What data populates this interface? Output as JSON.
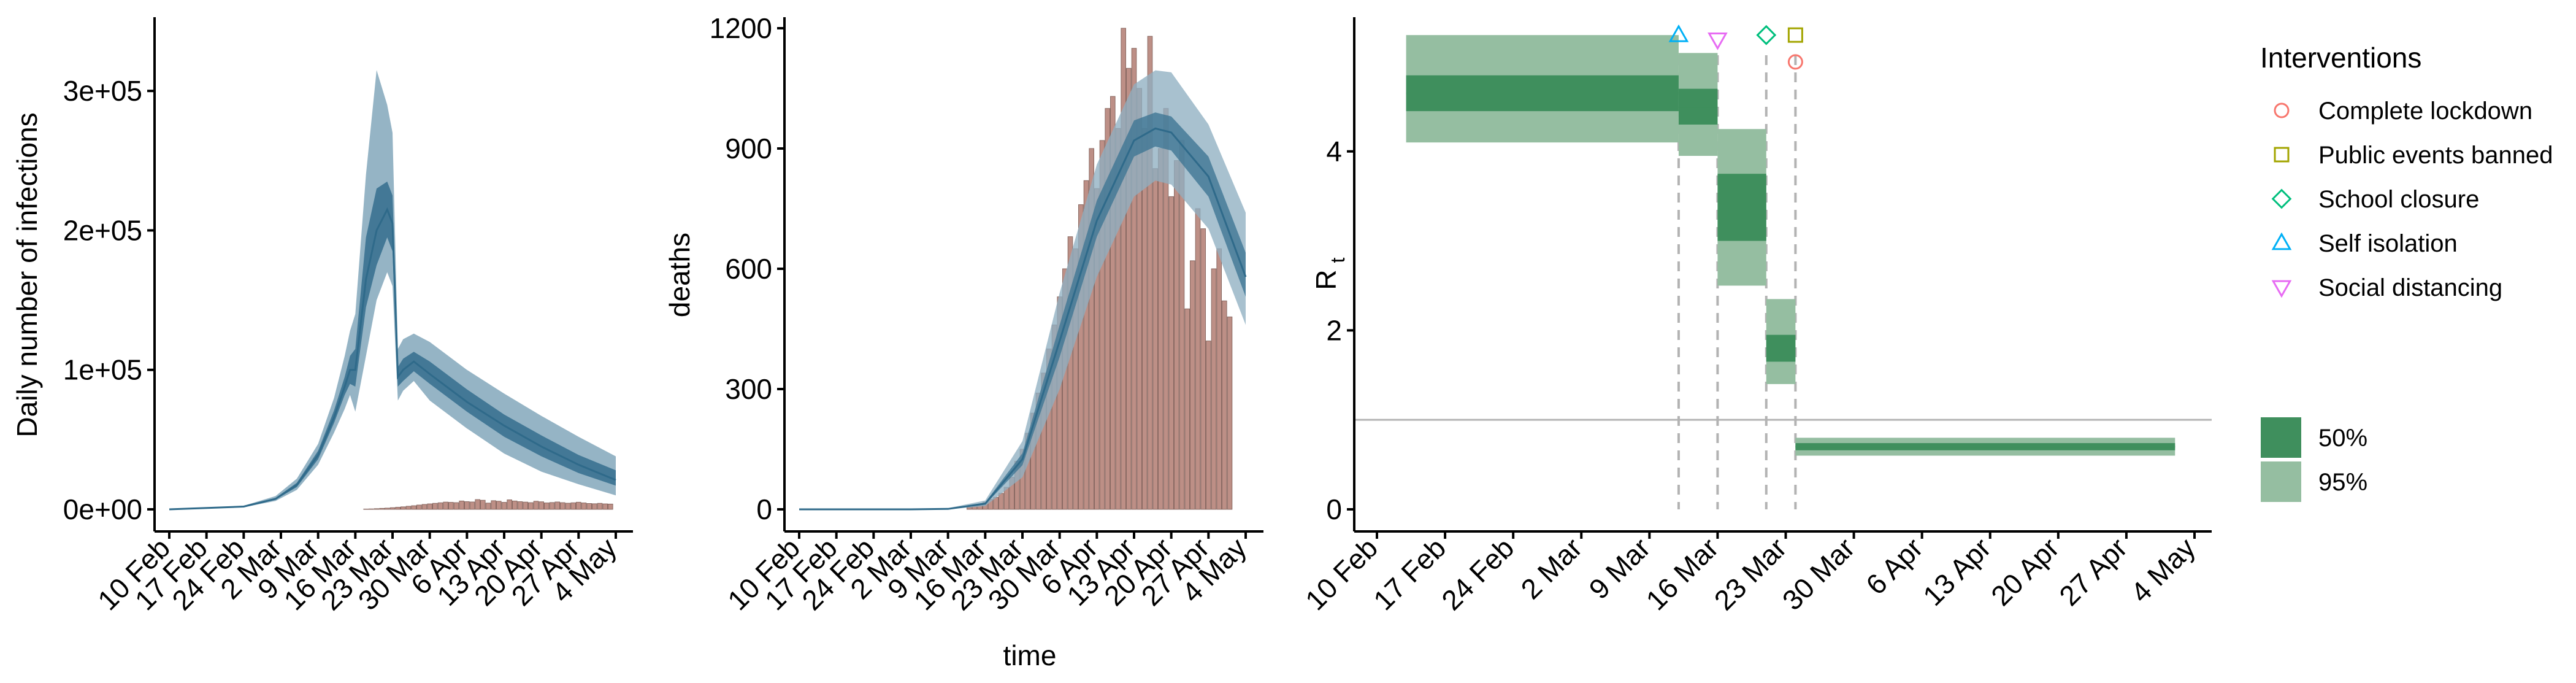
{
  "colors": {
    "bars": "#bd8f86",
    "bars_stroke": "#8a6a63",
    "band95_blue": "#8fb0c2",
    "band50_blue": "#3e7594",
    "line_blue": "#2f6a8a",
    "band95_green": "#95bea1",
    "band50_green": "#3f8f5d",
    "ref_line": "#b3b3b3",
    "dash_line": "#b3b3b3",
    "complete_lockdown": "#f8766d",
    "public_events": "#a3a500",
    "school_closure": "#00bf7d",
    "self_isolation": "#00b0f6",
    "social_distancing": "#e76bf3"
  },
  "chart_data": [
    {
      "type": "area",
      "ylabel": "Daily number of infections",
      "xlabel": "",
      "x_ticks": [
        "10 Feb",
        "17 Feb",
        "24 Feb",
        "2 Mar",
        "9 Mar",
        "16 Mar",
        "23 Mar",
        "30 Mar",
        "6 Apr",
        "13 Apr",
        "20 Apr",
        "27 Apr",
        "4 May"
      ],
      "y_ticks": [
        "0e+00",
        "1e+05",
        "2e+05",
        "3e+05"
      ],
      "ylim": [
        0,
        330000
      ],
      "x_start_date": "2020-02-10",
      "bands": {
        "x": [
          "2020-02-10",
          "2020-02-24",
          "2020-03-01",
          "2020-03-05",
          "2020-03-09",
          "2020-03-12",
          "2020-03-14",
          "2020-03-15",
          "2020-03-16",
          "2020-03-18",
          "2020-03-20",
          "2020-03-22",
          "2020-03-23",
          "2020-03-24",
          "2020-03-25",
          "2020-03-27",
          "2020-03-30",
          "2020-04-06",
          "2020-04-13",
          "2020-04-20",
          "2020-04-27",
          "2020-05-04"
        ],
        "lo95": [
          0,
          1500,
          6000,
          14000,
          32000,
          55000,
          72000,
          82000,
          70000,
          110000,
          150000,
          170000,
          160000,
          78000,
          85000,
          92000,
          78000,
          58000,
          40000,
          27000,
          18000,
          10000
        ],
        "lo50": [
          0,
          1800,
          7000,
          16000,
          36000,
          62000,
          82000,
          90000,
          88000,
          145000,
          175000,
          195000,
          185000,
          88000,
          92000,
          99000,
          90000,
          70000,
          52000,
          38000,
          26000,
          17000
        ],
        "median": [
          0,
          2000,
          7500,
          17500,
          39000,
          66000,
          88000,
          100000,
          100000,
          165000,
          200000,
          215000,
          205000,
          95000,
          100000,
          106000,
          97000,
          77000,
          60000,
          45000,
          32000,
          21000
        ],
        "hi50": [
          0,
          2200,
          8200,
          19000,
          42000,
          71000,
          95000,
          110000,
          115000,
          195000,
          230000,
          235000,
          225000,
          102000,
          108000,
          113000,
          106000,
          86000,
          68000,
          53000,
          39000,
          28000
        ],
        "hi95": [
          0,
          2600,
          9500,
          22000,
          47000,
          80000,
          110000,
          128000,
          140000,
          240000,
          315000,
          290000,
          270000,
          115000,
          122000,
          126000,
          120000,
          100000,
          83000,
          67000,
          52000,
          38000
        ]
      },
      "bars": {
        "x_start": "2020-03-18",
        "values": [
          200,
          300,
          500,
          700,
          900,
          1200,
          1500,
          1800,
          2200,
          2600,
          3100,
          3500,
          3900,
          4300,
          4700,
          5200,
          5000,
          4800,
          6000,
          5500,
          5300,
          7000,
          6500,
          4500,
          6200,
          5800,
          5000,
          6800,
          6000,
          5500,
          5200,
          4800,
          5800,
          5400,
          4600,
          4900,
          5300,
          4800,
          4400,
          4700,
          5100,
          4600,
          4200,
          4000,
          4300,
          3900,
          3800
        ]
      }
    },
    {
      "type": "bar",
      "ylabel": "deaths",
      "xlabel": "time",
      "x_ticks": [
        "10 Feb",
        "17 Feb",
        "24 Feb",
        "2 Mar",
        "9 Mar",
        "16 Mar",
        "23 Mar",
        "30 Mar",
        "6 Apr",
        "13 Apr",
        "20 Apr",
        "27 Apr",
        "4 May"
      ],
      "y_ticks": [
        "0",
        "300",
        "600",
        "900",
        "1200"
      ],
      "ylim": [
        0,
        1200
      ],
      "bars": {
        "x_start": "2020-03-13",
        "values": [
          5,
          8,
          12,
          18,
          25,
          30,
          40,
          55,
          80,
          120,
          150,
          190,
          240,
          290,
          340,
          400,
          460,
          530,
          600,
          680,
          650,
          760,
          820,
          900,
          800,
          920,
          1000,
          1030,
          950,
          1200,
          1100,
          1150,
          1050,
          950,
          1180,
          850,
          900,
          1000,
          780,
          870,
          920,
          500,
          620,
          750,
          700,
          420,
          600,
          650,
          520,
          480
        ]
      },
      "bands": {
        "x": [
          "2020-02-10",
          "2020-03-02",
          "2020-03-09",
          "2020-03-16",
          "2020-03-23",
          "2020-03-30",
          "2020-04-06",
          "2020-04-13",
          "2020-04-17",
          "2020-04-20",
          "2020-04-27",
          "2020-05-04"
        ],
        "lo95": [
          0,
          0,
          0,
          8,
          80,
          300,
          580,
          780,
          820,
          810,
          700,
          460
        ],
        "lo50": [
          0,
          0,
          1,
          12,
          110,
          380,
          680,
          880,
          905,
          895,
          780,
          530
        ],
        "median": [
          0,
          0,
          1,
          14,
          125,
          420,
          720,
          920,
          950,
          940,
          830,
          580
        ],
        "hi50": [
          0,
          0,
          2,
          17,
          140,
          460,
          770,
          970,
          990,
          980,
          880,
          640
        ],
        "hi95": [
          0,
          0,
          3,
          22,
          170,
          540,
          860,
          1060,
          1095,
          1090,
          960,
          740
        ]
      }
    },
    {
      "type": "area",
      "ylabel_main": "R",
      "ylabel_sub": "t",
      "xlabel": "",
      "x_ticks": [
        "10 Feb",
        "17 Feb",
        "24 Feb",
        "2 Mar",
        "9 Mar",
        "16 Mar",
        "23 Mar",
        "30 Mar",
        "6 Apr",
        "13 Apr",
        "20 Apr",
        "27 Apr",
        "4 May"
      ],
      "y_ticks": [
        "0",
        "2",
        "4"
      ],
      "ylim": [
        0,
        5.5
      ],
      "reference_line": 1,
      "intervention_dates": [
        "2020-03-12",
        "2020-03-16",
        "2020-03-21",
        "2020-03-24"
      ],
      "segments": [
        {
          "start": "2020-02-13",
          "end": "2020-03-12",
          "lo95": 4.1,
          "hi95": 5.3,
          "lo50": 4.45,
          "hi50": 4.85,
          "median": 4.65
        },
        {
          "start": "2020-03-12",
          "end": "2020-03-16",
          "lo95": 3.95,
          "hi95": 5.1,
          "lo50": 4.3,
          "hi50": 4.7,
          "median": 4.5
        },
        {
          "start": "2020-03-16",
          "end": "2020-03-21",
          "lo95": 2.5,
          "hi95": 4.25,
          "lo50": 3.0,
          "hi50": 3.75,
          "median": 3.35
        },
        {
          "start": "2020-03-21",
          "end": "2020-03-24",
          "lo95": 1.4,
          "hi95": 2.35,
          "lo50": 1.65,
          "hi50": 1.95,
          "median": 1.8
        },
        {
          "start": "2020-03-24",
          "end": "2020-05-02",
          "lo95": 0.6,
          "hi95": 0.8,
          "lo50": 0.66,
          "hi50": 0.74,
          "median": 0.7
        }
      ],
      "markers": [
        {
          "name": "Self isolation",
          "date": "2020-03-12",
          "y": 5.3,
          "shape": "triangle-up"
        },
        {
          "name": "Social distancing",
          "date": "2020-03-16",
          "y": 5.25,
          "shape": "triangle-down"
        },
        {
          "name": "School closure",
          "date": "2020-03-21",
          "y": 5.3,
          "shape": "diamond"
        },
        {
          "name": "Public events banned",
          "date": "2020-03-24",
          "y": 5.3,
          "shape": "square"
        },
        {
          "name": "Complete lockdown",
          "date": "2020-03-24",
          "y": 5.0,
          "shape": "circle"
        }
      ]
    }
  ],
  "legend": {
    "title": "Interventions",
    "items": [
      {
        "label": "Complete lockdown",
        "shape": "circle",
        "color_key": "complete_lockdown"
      },
      {
        "label": "Public events banned",
        "shape": "square",
        "color_key": "public_events"
      },
      {
        "label": "School closure",
        "shape": "diamond",
        "color_key": "school_closure"
      },
      {
        "label": "Self isolation",
        "shape": "triangle-up",
        "color_key": "self_isolation"
      },
      {
        "label": "Social distancing",
        "shape": "triangle-down",
        "color_key": "social_distancing"
      }
    ],
    "interval_items": [
      {
        "label": "50%",
        "color_key": "band50_green"
      },
      {
        "label": "95%",
        "color_key": "band95_green"
      }
    ]
  }
}
